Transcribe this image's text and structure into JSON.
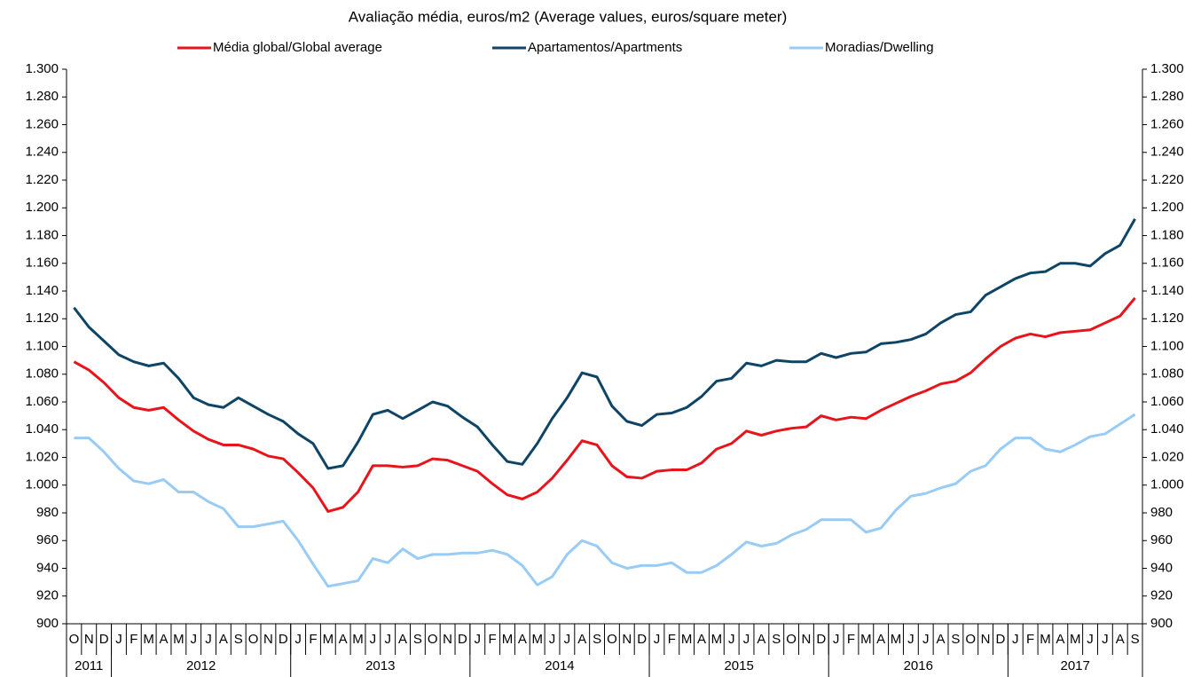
{
  "chart_data": {
    "type": "line",
    "title": "Avaliação média, euros/m2 (Average values, euros/square meter)",
    "categories": [
      "O",
      "N",
      "D",
      "J",
      "F",
      "M",
      "A",
      "M",
      "J",
      "J",
      "A",
      "S",
      "O",
      "N",
      "D",
      "J",
      "F",
      "M",
      "A",
      "M",
      "J",
      "J",
      "A",
      "S",
      "O",
      "N",
      "D",
      "J",
      "F",
      "M",
      "A",
      "M",
      "J",
      "J",
      "A",
      "S",
      "O",
      "N",
      "D",
      "J",
      "F",
      "M",
      "A",
      "M",
      "J",
      "J",
      "A",
      "S",
      "O",
      "N",
      "D",
      "J",
      "F",
      "M",
      "A",
      "M",
      "J",
      "J",
      "A",
      "S",
      "O",
      "N",
      "D",
      "J",
      "F",
      "M",
      "A",
      "M",
      "J",
      "J",
      "A",
      "S"
    ],
    "years": [
      "2011",
      "2012",
      "2013",
      "2014",
      "2015",
      "2016",
      "2017"
    ],
    "series": [
      {
        "name": "Média global/Global average",
        "color": "#e8141b",
        "values": [
          1089,
          1083,
          1074,
          1063,
          1056,
          1054,
          1056,
          1047,
          1039,
          1033,
          1029,
          1029,
          1026,
          1021,
          1019,
          1009,
          998,
          981,
          984,
          995,
          1014,
          1014,
          1013,
          1014,
          1019,
          1018,
          1014,
          1010,
          1001,
          993,
          990,
          995,
          1005,
          1018,
          1032,
          1029,
          1014,
          1006,
          1005,
          1010,
          1011,
          1011,
          1016,
          1026,
          1030,
          1039,
          1036,
          1039,
          1041,
          1042,
          1050,
          1047,
          1049,
          1048,
          1054,
          1059,
          1064,
          1068,
          1073,
          1075,
          1081,
          1091,
          1100,
          1106,
          1109,
          1107,
          1110,
          1111,
          1112,
          1117,
          1122,
          1135
        ]
      },
      {
        "name": "Apartamentos/Apartments",
        "color": "#0e4466",
        "values": [
          1128,
          1114,
          1104,
          1094,
          1089,
          1086,
          1088,
          1077,
          1063,
          1058,
          1056,
          1063,
          1057,
          1051,
          1046,
          1037,
          1030,
          1012,
          1014,
          1031,
          1051,
          1054,
          1048,
          1054,
          1060,
          1057,
          1049,
          1042,
          1029,
          1017,
          1015,
          1030,
          1048,
          1063,
          1081,
          1078,
          1057,
          1046,
          1043,
          1051,
          1052,
          1056,
          1064,
          1075,
          1077,
          1088,
          1086,
          1090,
          1089,
          1089,
          1095,
          1092,
          1095,
          1096,
          1102,
          1103,
          1105,
          1109,
          1117,
          1123,
          1125,
          1137,
          1143,
          1149,
          1153,
          1154,
          1160,
          1160,
          1158,
          1167,
          1173,
          1192
        ]
      },
      {
        "name": "Moradias/Dwelling",
        "color": "#99ccf5",
        "values": [
          1034,
          1034,
          1024,
          1012,
          1003,
          1001,
          1004,
          995,
          995,
          988,
          983,
          970,
          970,
          972,
          974,
          960,
          943,
          927,
          929,
          931,
          947,
          944,
          954,
          947,
          950,
          950,
          951,
          951,
          953,
          950,
          942,
          928,
          934,
          950,
          960,
          956,
          944,
          940,
          942,
          942,
          944,
          937,
          937,
          942,
          950,
          959,
          956,
          958,
          964,
          968,
          975,
          975,
          975,
          966,
          969,
          982,
          992,
          994,
          998,
          1001,
          1010,
          1014,
          1026,
          1034,
          1034,
          1026,
          1024,
          1029,
          1035,
          1037,
          1044,
          1051
        ]
      }
    ],
    "ylim": [
      900,
      1300
    ],
    "yticks": [
      900,
      920,
      940,
      960,
      980,
      {
        "value": 1000,
        "label": "1.000"
      },
      {
        "value": 1020,
        "label": "1.020"
      },
      {
        "value": 1040,
        "label": "1.040"
      },
      {
        "value": 1060,
        "label": "1.060"
      },
      {
        "value": 1080,
        "label": "1.080"
      },
      {
        "value": 1100,
        "label": "1.100"
      },
      {
        "value": 1120,
        "label": "1.120"
      },
      {
        "value": 1140,
        "label": "1.140"
      },
      {
        "value": 1160,
        "label": "1.160"
      },
      {
        "value": 1180,
        "label": "1.180"
      },
      {
        "value": 1200,
        "label": "1.200"
      },
      {
        "value": 1220,
        "label": "1.220"
      },
      {
        "value": 1240,
        "label": "1.240"
      },
      {
        "value": 1260,
        "label": "1.260"
      },
      {
        "value": 1280,
        "label": "1.280"
      },
      {
        "value": 1300,
        "label": "1.300"
      }
    ],
    "grid": false,
    "legend": "top"
  }
}
